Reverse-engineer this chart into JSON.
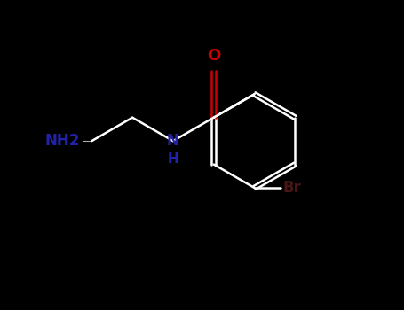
{
  "bg_color": "#000000",
  "bond_color": "#ffffff",
  "N_color": "#2222aa",
  "O_color": "#cc0000",
  "Br_color": "#4a1515",
  "label_NH2": "NH2",
  "label_NH": "NH",
  "label_O": "O",
  "label_Br": "Br",
  "fig_width": 4.55,
  "fig_height": 3.5,
  "dpi": 100,
  "bond_lw": 1.8,
  "font_size": 11
}
